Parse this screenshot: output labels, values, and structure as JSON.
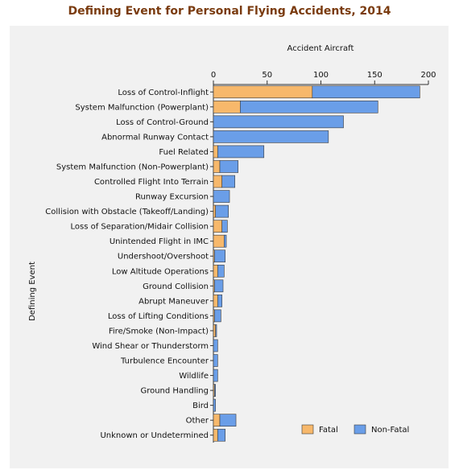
{
  "chart_data": {
    "type": "bar",
    "orientation": "horizontal",
    "stacked": true,
    "title": "Defining Event for Personal Flying Accidents, 2014",
    "xlabel": "Accident Aircraft",
    "ylabel": "Defining Event",
    "xlim": [
      0,
      200
    ],
    "xticks": [
      0,
      50,
      100,
      150,
      200
    ],
    "x_axis_position": "top",
    "grid": false,
    "legend_position": "bottom-right",
    "categories": [
      "Loss of Control-Inflight",
      "System Malfunction (Powerplant)",
      "Loss of Control-Ground",
      "Abnormal Runway Contact",
      "Fuel Related",
      "System Malfunction (Non-Powerplant)",
      "Controlled Flight Into Terrain",
      "Runway Excursion",
      "Collision with Obstacle (Takeoff/Landing)",
      "Loss of Separation/Midair Collision",
      "Unintended Flight in IMC",
      "Undershoot/Overshoot",
      "Low Altitude Operations",
      "Ground Collision",
      "Abrupt Maneuver",
      "Loss of Lifting Conditions",
      "Fire/Smoke (Non-Impact)",
      "Wind Shear or Thunderstorm",
      "Turbulence Encounter",
      "Wildlife",
      "Ground Handling",
      "Bird",
      "Other",
      "Unknown or Undetermined"
    ],
    "series": [
      {
        "name": "Fatal",
        "color": "#f7b86b",
        "values": [
          92,
          25,
          0,
          0,
          4,
          6,
          8,
          0,
          2,
          8,
          10,
          1,
          4,
          1,
          4,
          1,
          2,
          0,
          0,
          0,
          1,
          0,
          6,
          4
        ]
      },
      {
        "name": "Non-Fatal",
        "color": "#6a9ee8",
        "values": [
          100,
          128,
          121,
          107,
          43,
          17,
          12,
          15,
          12,
          5,
          2,
          10,
          6,
          8,
          4,
          6,
          1,
          4,
          4,
          4,
          1,
          2,
          15,
          7
        ]
      }
    ]
  }
}
